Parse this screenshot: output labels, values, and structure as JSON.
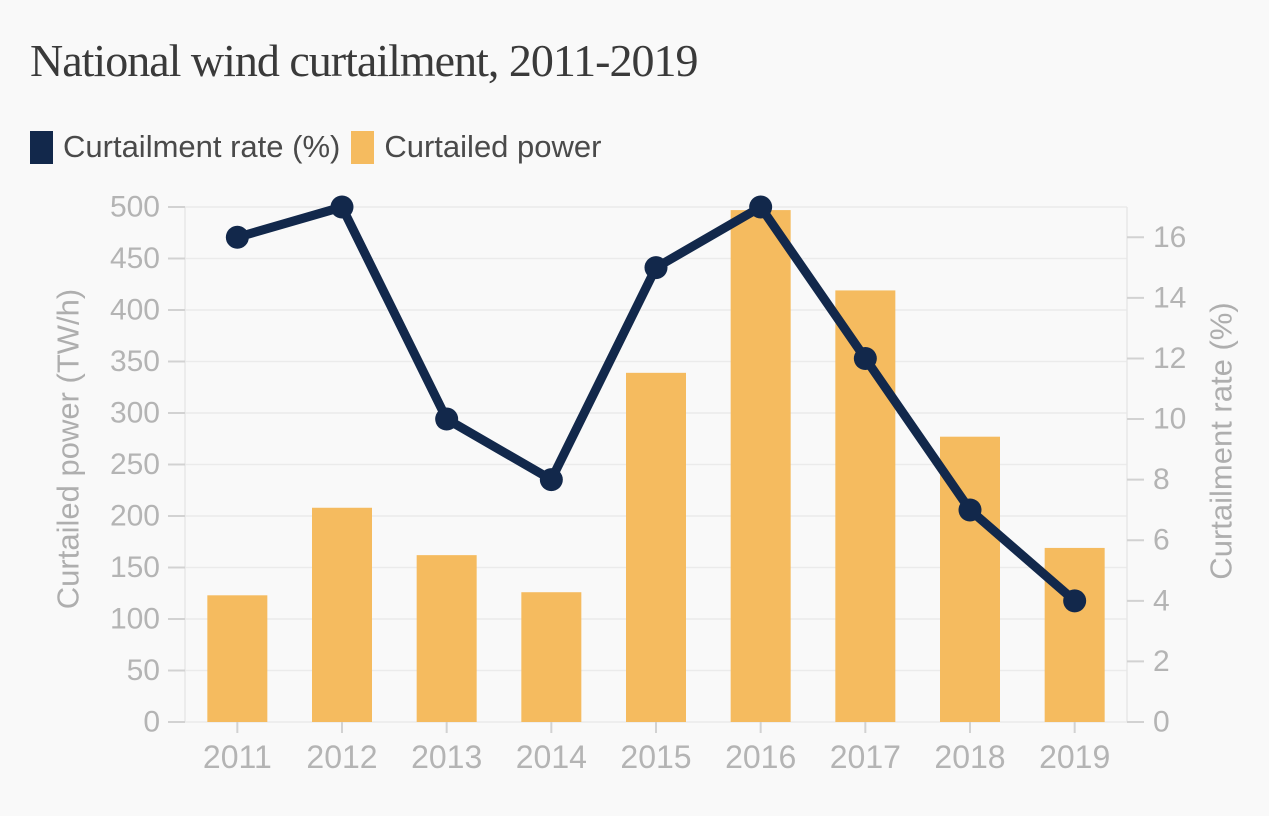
{
  "chart_data": {
    "type": "combo",
    "title": "National wind curtailment, 2011-2019",
    "categories": [
      "2011",
      "2012",
      "2013",
      "2014",
      "2015",
      "2016",
      "2017",
      "2018",
      "2019"
    ],
    "series": [
      {
        "name": "Curtailment rate (%)",
        "chart_type": "line",
        "axis": "right",
        "color": "#12284b",
        "values": [
          16,
          17,
          10,
          8,
          15,
          17,
          12,
          7,
          4
        ]
      },
      {
        "name": "Curtailed power",
        "chart_type": "bar",
        "axis": "left",
        "color": "#f5bb5f",
        "values": [
          123,
          208,
          162,
          126,
          339,
          497,
          419,
          277,
          169
        ]
      }
    ],
    "left_axis": {
      "label": "Curtailed power (TW/h)",
      "min": 0,
      "max": 500,
      "tick_step": 50,
      "tick_labels": [
        "0",
        "50",
        "100",
        "150",
        "200",
        "250",
        "300",
        "350",
        "400",
        "450",
        "500"
      ]
    },
    "right_axis": {
      "label": "Curtailment rate (%)",
      "min": 0,
      "max": 16,
      "tick_step": 2,
      "top_value": 17,
      "tick_labels": [
        "0",
        "2",
        "4",
        "6",
        "8",
        "10",
        "12",
        "14",
        "16"
      ]
    },
    "grid": "horizontal",
    "legend_position": "top-left"
  },
  "legend": {
    "items": [
      {
        "label": "Curtailment rate (%)",
        "color": "#12284b"
      },
      {
        "label": "Curtailed power",
        "color": "#f5bb5f"
      }
    ]
  },
  "colors": {
    "background": "#f9f9f9",
    "title_text": "#3a3a3a",
    "legend_text": "#4a4a4a",
    "line": "#12284b",
    "bar": "#f5bb5f",
    "tick_text": "#b4b4b4",
    "axis_title_text": "#aeaeae",
    "gridline": "#ebebeb",
    "axis_line": "#e7e7e7",
    "tick_mark": "#d2d2d2"
  }
}
